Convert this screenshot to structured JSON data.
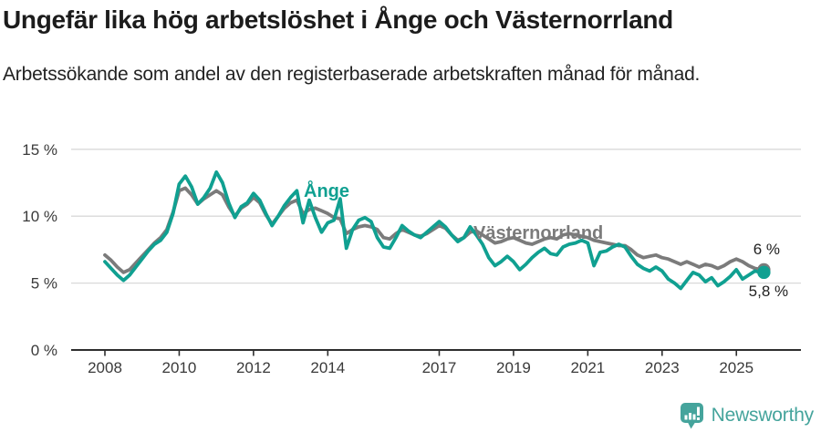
{
  "footer": {
    "brand": "Newsworthy"
  },
  "colors": {
    "accent_teal": "#10a091",
    "series_gray": "#7b7b7b",
    "logo_teal": "#45a49c",
    "grid": "#d9d9d9",
    "axis": "#2e2e2e",
    "axis_text": "#3a3a3a",
    "annotation_text": "#1f1f1f"
  },
  "chart_data": {
    "type": "line",
    "title": "Ungefär lika hög arbetslöshet i Ånge och Västernorrland",
    "subtitle": "Arbetssökande som andel av den registerbaserade arbetskraften månad för månad.",
    "x_start_year": 2008,
    "points_per_year": 6,
    "x_tick_years": [
      2008,
      2010,
      2012,
      2014,
      2017,
      2019,
      2021,
      2023,
      2025
    ],
    "x_tick_labels": [
      "2008",
      "2010",
      "2012",
      "2014",
      "2017",
      "2019",
      "2021",
      "2023",
      "2025"
    ],
    "y_ticks": [
      {
        "value": 15,
        "label": "15 %"
      },
      {
        "value": 10,
        "label": "10 %"
      },
      {
        "value": 5,
        "label": "5 %"
      },
      {
        "value": 0,
        "label": "0 %"
      }
    ],
    "ylim": [
      0,
      16
    ],
    "grid": true,
    "legend": "inline-labels",
    "series": [
      {
        "name": "Västernorrland",
        "color": "#7b7b7b",
        "end_label": "6 %",
        "values": [
          7.1,
          6.7,
          6.2,
          5.8,
          6.0,
          6.5,
          7.0,
          7.5,
          8.0,
          8.4,
          9.0,
          10.3,
          11.9,
          12.1,
          11.6,
          10.9,
          11.3,
          11.6,
          11.9,
          11.6,
          10.7,
          10.0,
          10.6,
          10.9,
          11.4,
          11.0,
          10.1,
          9.4,
          10.0,
          10.6,
          11.0,
          11.2,
          10.2,
          10.5,
          10.6,
          10.4,
          10.2,
          9.9,
          9.8,
          8.7,
          9.0,
          9.2,
          9.3,
          9.2,
          9.0,
          8.4,
          8.3,
          8.7,
          9.0,
          8.8,
          8.6,
          8.5,
          8.7,
          9.0,
          9.3,
          9.1,
          8.6,
          8.2,
          8.4,
          8.8,
          8.9,
          8.6,
          8.3,
          8.0,
          8.1,
          8.3,
          8.4,
          8.2,
          8.0,
          7.9,
          8.1,
          8.3,
          8.4,
          8.3,
          8.6,
          8.7,
          8.6,
          8.5,
          8.4,
          8.2,
          8.1,
          8.0,
          7.9,
          7.8,
          7.8,
          7.5,
          7.1,
          6.9,
          7.0,
          7.1,
          6.9,
          6.8,
          6.6,
          6.4,
          6.6,
          6.4,
          6.2,
          6.4,
          6.3,
          6.1,
          6.3,
          6.6,
          6.8,
          6.6,
          6.3,
          6.1,
          6.0
        ]
      },
      {
        "name": "Ånge",
        "color": "#10a091",
        "end_label": "5,8 %",
        "values": [
          6.6,
          6.1,
          5.6,
          5.2,
          5.6,
          6.2,
          6.8,
          7.4,
          7.9,
          8.2,
          8.8,
          10.2,
          12.4,
          13.0,
          12.2,
          10.9,
          11.4,
          12.1,
          13.3,
          12.5,
          11.0,
          9.9,
          10.7,
          11.0,
          11.7,
          11.2,
          10.2,
          9.3,
          10.0,
          10.8,
          11.4,
          11.9,
          9.5,
          11.2,
          9.9,
          8.8,
          9.5,
          9.7,
          11.3,
          7.6,
          9.0,
          9.7,
          9.9,
          9.6,
          8.4,
          7.7,
          7.6,
          8.4,
          9.3,
          8.9,
          8.6,
          8.4,
          8.8,
          9.2,
          9.6,
          9.2,
          8.6,
          8.1,
          8.4,
          9.2,
          8.6,
          7.9,
          6.9,
          6.3,
          6.6,
          7.0,
          6.6,
          6.0,
          6.4,
          6.9,
          7.3,
          7.6,
          7.2,
          7.1,
          7.7,
          7.9,
          8.0,
          8.2,
          8.0,
          6.3,
          7.3,
          7.4,
          7.7,
          7.9,
          7.7,
          7.0,
          6.4,
          6.1,
          5.9,
          6.2,
          5.9,
          5.3,
          5.0,
          4.6,
          5.2,
          5.8,
          5.6,
          5.1,
          5.4,
          4.8,
          5.1,
          5.5,
          6.0,
          5.3,
          5.6,
          5.9,
          5.8
        ]
      }
    ]
  }
}
